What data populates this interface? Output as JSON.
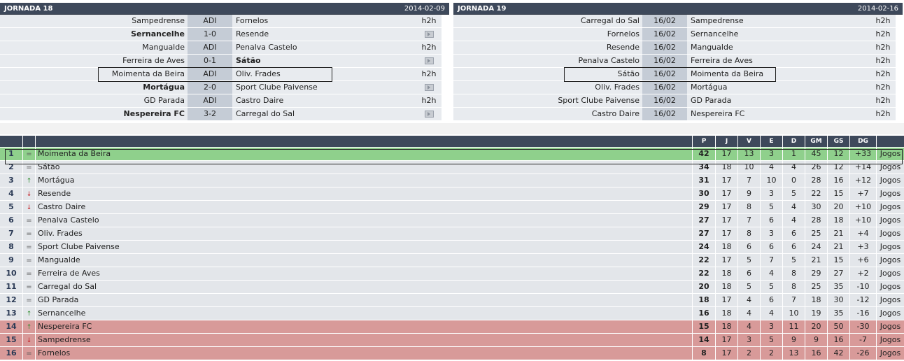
{
  "left": {
    "title": "JORNADA 18",
    "date": "2014-02-09",
    "matches": [
      {
        "home": "Sampedrense",
        "result": "ADI",
        "away": "Fornelos",
        "h2h": "h2h",
        "bold_home": false,
        "bold_away": false,
        "link": "text"
      },
      {
        "home": "Sernancelhe",
        "result": "1-0",
        "away": "Resende",
        "h2h": "video",
        "bold_home": true,
        "bold_away": false,
        "link": "video"
      },
      {
        "home": "Mangualde",
        "result": "ADI",
        "away": "Penalva Castelo",
        "h2h": "h2h",
        "bold_home": false,
        "bold_away": false,
        "link": "text"
      },
      {
        "home": "Ferreira de Aves",
        "result": "0-1",
        "away": "Sátão",
        "h2h": "video",
        "bold_home": false,
        "bold_away": true,
        "link": "video"
      },
      {
        "home": "Moimenta da Beira",
        "result": "ADI",
        "away": "Oliv. Frades",
        "h2h": "h2h",
        "bold_home": false,
        "bold_away": false,
        "link": "text"
      },
      {
        "home": "Mortágua",
        "result": "2-0",
        "away": "Sport Clube Paivense",
        "h2h": "video",
        "bold_home": true,
        "bold_away": false,
        "link": "video"
      },
      {
        "home": "GD Parada",
        "result": "ADI",
        "away": "Castro Daire",
        "h2h": "h2h",
        "bold_home": false,
        "bold_away": false,
        "link": "text"
      },
      {
        "home": "Nespereira FC",
        "result": "3-2",
        "away": "Carregal do Sal",
        "h2h": "video",
        "bold_home": true,
        "bold_away": false,
        "link": "video"
      }
    ]
  },
  "right": {
    "title": "JORNADA 19",
    "date": "2014-02-16",
    "matches": [
      {
        "home": "Carregal do Sal",
        "result": "16/02",
        "away": "Sampedrense",
        "h2h": "h2h"
      },
      {
        "home": "Fornelos",
        "result": "16/02",
        "away": "Sernancelhe",
        "h2h": "h2h"
      },
      {
        "home": "Resende",
        "result": "16/02",
        "away": "Mangualde",
        "h2h": "h2h"
      },
      {
        "home": "Penalva Castelo",
        "result": "16/02",
        "away": "Ferreira de Aves",
        "h2h": "h2h"
      },
      {
        "home": "Sátão",
        "result": "16/02",
        "away": "Moimenta da Beira",
        "h2h": "h2h"
      },
      {
        "home": "Oliv. Frades",
        "result": "16/02",
        "away": "Mortágua",
        "h2h": "h2h"
      },
      {
        "home": "Sport Clube Paivense",
        "result": "16/02",
        "away": "GD Parada",
        "h2h": "h2h"
      },
      {
        "home": "Castro Daire",
        "result": "16/02",
        "away": "Nespereira FC",
        "h2h": "h2h"
      }
    ]
  },
  "table": {
    "headers": {
      "p": "P",
      "j": "J",
      "v": "V",
      "e": "E",
      "d": "D",
      "gm": "GM",
      "gs": "GS",
      "dg": "DG"
    },
    "rows": [
      {
        "pos": "1",
        "trend": "eq",
        "team": "Moimenta da Beira",
        "p": "42",
        "j": "17",
        "v": "13",
        "e": "3",
        "d": "1",
        "gm": "45",
        "gs": "12",
        "dg": "+33",
        "link": "Jogos",
        "zone": "green"
      },
      {
        "pos": "2",
        "trend": "eq",
        "team": "Sátão",
        "p": "34",
        "j": "18",
        "v": "10",
        "e": "4",
        "d": "4",
        "gm": "26",
        "gs": "12",
        "dg": "+14",
        "link": "Jogos",
        "zone": ""
      },
      {
        "pos": "3",
        "trend": "up",
        "team": "Mortágua",
        "p": "31",
        "j": "17",
        "v": "7",
        "e": "10",
        "d": "0",
        "gm": "28",
        "gs": "16",
        "dg": "+12",
        "link": "Jogos",
        "zone": ""
      },
      {
        "pos": "4",
        "trend": "down",
        "team": "Resende",
        "p": "30",
        "j": "17",
        "v": "9",
        "e": "3",
        "d": "5",
        "gm": "22",
        "gs": "15",
        "dg": "+7",
        "link": "Jogos",
        "zone": ""
      },
      {
        "pos": "5",
        "trend": "down",
        "team": "Castro Daire",
        "p": "29",
        "j": "17",
        "v": "8",
        "e": "5",
        "d": "4",
        "gm": "30",
        "gs": "20",
        "dg": "+10",
        "link": "Jogos",
        "zone": ""
      },
      {
        "pos": "6",
        "trend": "eq",
        "team": "Penalva Castelo",
        "p": "27",
        "j": "17",
        "v": "7",
        "e": "6",
        "d": "4",
        "gm": "28",
        "gs": "18",
        "dg": "+10",
        "link": "Jogos",
        "zone": ""
      },
      {
        "pos": "7",
        "trend": "eq",
        "team": "Oliv. Frades",
        "p": "27",
        "j": "17",
        "v": "8",
        "e": "3",
        "d": "6",
        "gm": "25",
        "gs": "21",
        "dg": "+4",
        "link": "Jogos",
        "zone": ""
      },
      {
        "pos": "8",
        "trend": "eq",
        "team": "Sport Clube Paivense",
        "p": "24",
        "j": "18",
        "v": "6",
        "e": "6",
        "d": "6",
        "gm": "24",
        "gs": "21",
        "dg": "+3",
        "link": "Jogos",
        "zone": ""
      },
      {
        "pos": "9",
        "trend": "eq",
        "team": "Mangualde",
        "p": "22",
        "j": "17",
        "v": "5",
        "e": "7",
        "d": "5",
        "gm": "21",
        "gs": "15",
        "dg": "+6",
        "link": "Jogos",
        "zone": ""
      },
      {
        "pos": "10",
        "trend": "eq",
        "team": "Ferreira de Aves",
        "p": "22",
        "j": "18",
        "v": "6",
        "e": "4",
        "d": "8",
        "gm": "29",
        "gs": "27",
        "dg": "+2",
        "link": "Jogos",
        "zone": ""
      },
      {
        "pos": "11",
        "trend": "eq",
        "team": "Carregal do Sal",
        "p": "20",
        "j": "18",
        "v": "5",
        "e": "5",
        "d": "8",
        "gm": "25",
        "gs": "35",
        "dg": "-10",
        "link": "Jogos",
        "zone": ""
      },
      {
        "pos": "12",
        "trend": "eq",
        "team": "GD Parada",
        "p": "18",
        "j": "17",
        "v": "4",
        "e": "6",
        "d": "7",
        "gm": "18",
        "gs": "30",
        "dg": "-12",
        "link": "Jogos",
        "zone": ""
      },
      {
        "pos": "13",
        "trend": "up",
        "team": "Sernancelhe",
        "p": "16",
        "j": "18",
        "v": "4",
        "e": "4",
        "d": "10",
        "gm": "19",
        "gs": "35",
        "dg": "-16",
        "link": "Jogos",
        "zone": ""
      },
      {
        "pos": "14",
        "trend": "up",
        "team": "Nespereira FC",
        "p": "15",
        "j": "18",
        "v": "4",
        "e": "3",
        "d": "11",
        "gm": "20",
        "gs": "50",
        "dg": "-30",
        "link": "Jogos",
        "zone": "red"
      },
      {
        "pos": "15",
        "trend": "down",
        "team": "Sampedrense",
        "p": "14",
        "j": "17",
        "v": "3",
        "e": "5",
        "d": "9",
        "gm": "9",
        "gs": "16",
        "dg": "-7",
        "link": "Jogos",
        "zone": "red"
      },
      {
        "pos": "16",
        "trend": "eq",
        "team": "Fornelos",
        "p": "8",
        "j": "17",
        "v": "2",
        "e": "2",
        "d": "13",
        "gm": "16",
        "gs": "42",
        "dg": "-26",
        "link": "Jogos",
        "zone": "red"
      }
    ]
  }
}
